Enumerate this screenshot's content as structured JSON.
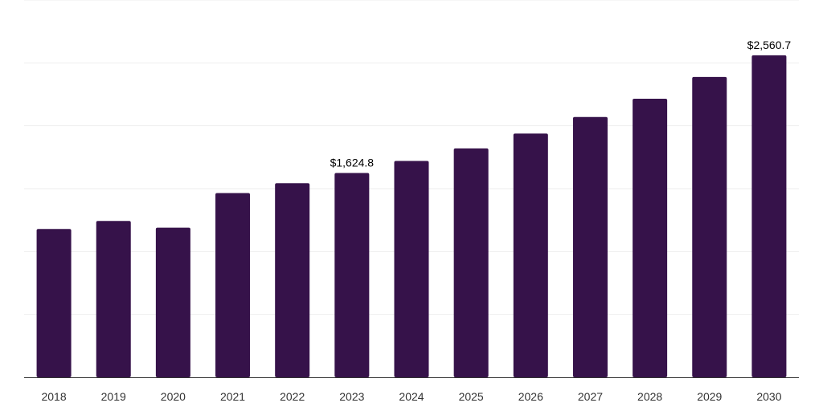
{
  "chart_data": {
    "type": "bar",
    "title": "",
    "xlabel": "",
    "ylabel": "",
    "categories": [
      "2018",
      "2019",
      "2020",
      "2021",
      "2022",
      "2023",
      "2024",
      "2025",
      "2026",
      "2027",
      "2028",
      "2029",
      "2030"
    ],
    "series": [
      {
        "values": [
          1179,
          1243,
          1190,
          1465,
          1543,
          1624.8,
          1720,
          1820,
          1938,
          2070,
          2215,
          2388,
          2560.7
        ],
        "data_labels": [
          "",
          "",
          "",
          "",
          "",
          "$1,624.8",
          "",
          "",
          "",
          "",
          "",
          "",
          "$2,560.7"
        ]
      }
    ],
    "ylim": [
      0,
      3000
    ],
    "y_grid_step": 500,
    "grid": true,
    "y_axis_labels_visible": false,
    "legend": "none",
    "colors": {
      "bar": "#36124a",
      "grid": "#eeeeee",
      "axis": "#333333"
    }
  }
}
